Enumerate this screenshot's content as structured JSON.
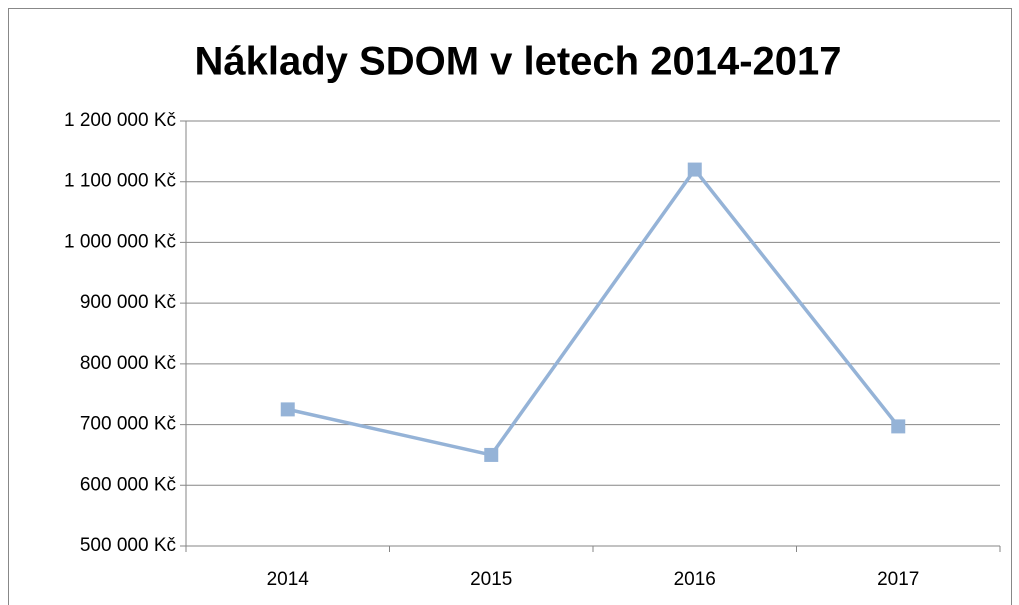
{
  "chart_data": {
    "type": "line",
    "title": "Náklady SDOM v letech 2014-2017",
    "categories": [
      "2014",
      "2015",
      "2016",
      "2017"
    ],
    "values": [
      725000,
      650000,
      1120000,
      697000
    ],
    "color": "#95b3d7",
    "ylim": [
      500000,
      1200000
    ],
    "yticks": [
      {
        "value": 500000,
        "label": "500 000 Kč"
      },
      {
        "value": 600000,
        "label": "600 000 Kč"
      },
      {
        "value": 700000,
        "label": "700 000 Kč"
      },
      {
        "value": 800000,
        "label": "800 000 Kč"
      },
      {
        "value": 900000,
        "label": "900 000 Kč"
      },
      {
        "value": 1000000,
        "label": "1 000 000 Kč"
      },
      {
        "value": 1100000,
        "label": "1 100 000 Kč"
      },
      {
        "value": 1200000,
        "label": "1 200 000 Kč"
      }
    ],
    "grid": true
  }
}
